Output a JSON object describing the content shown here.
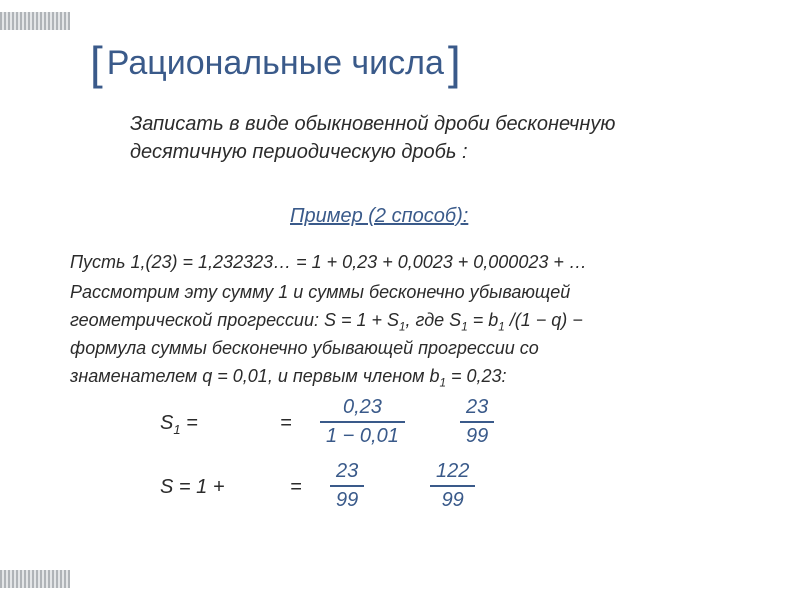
{
  "title": "Рациональные числа",
  "subtitle": "Записать в виде обыкновенной дроби бесконечную десятичную периодическую дробь :",
  "example_label": "Пример (2 способ):",
  "lines": {
    "l1": "Пусть 1,(23) = 1,232323… = 1 + 0,23 + 0,0023 + 0,000023 + …",
    "l2": "Рассмотрим эту сумму 1 и суммы бесконечно убывающей",
    "l3_a": "геометрической прогрессии: S = 1 + S",
    "l3_b": ", где S",
    "l3_c": " = b",
    "l3_d": " /(1 − q) −",
    "l4": "формула суммы бесконечно убывающей прогрессии со",
    "l5_a": "знаменателем q = 0,01, и первым членом b",
    "l5_b": " = 0,23:"
  },
  "math": {
    "s1_label_a": "S",
    "s1_label_b": " =",
    "s_label": "S = 1 +",
    "eq": "=",
    "frac1_num": "0,23",
    "frac1_den": "1 − 0,01",
    "frac2_num": "23",
    "frac2_den": "99",
    "frac3_num": "23",
    "frac3_den": "99",
    "frac4_num": "122",
    "frac4_den": "99"
  },
  "colors": {
    "title_color": "#3a5a8a",
    "text_color": "#2b2b2b",
    "accent_color": "#3a5a8a",
    "background": "#ffffff"
  }
}
